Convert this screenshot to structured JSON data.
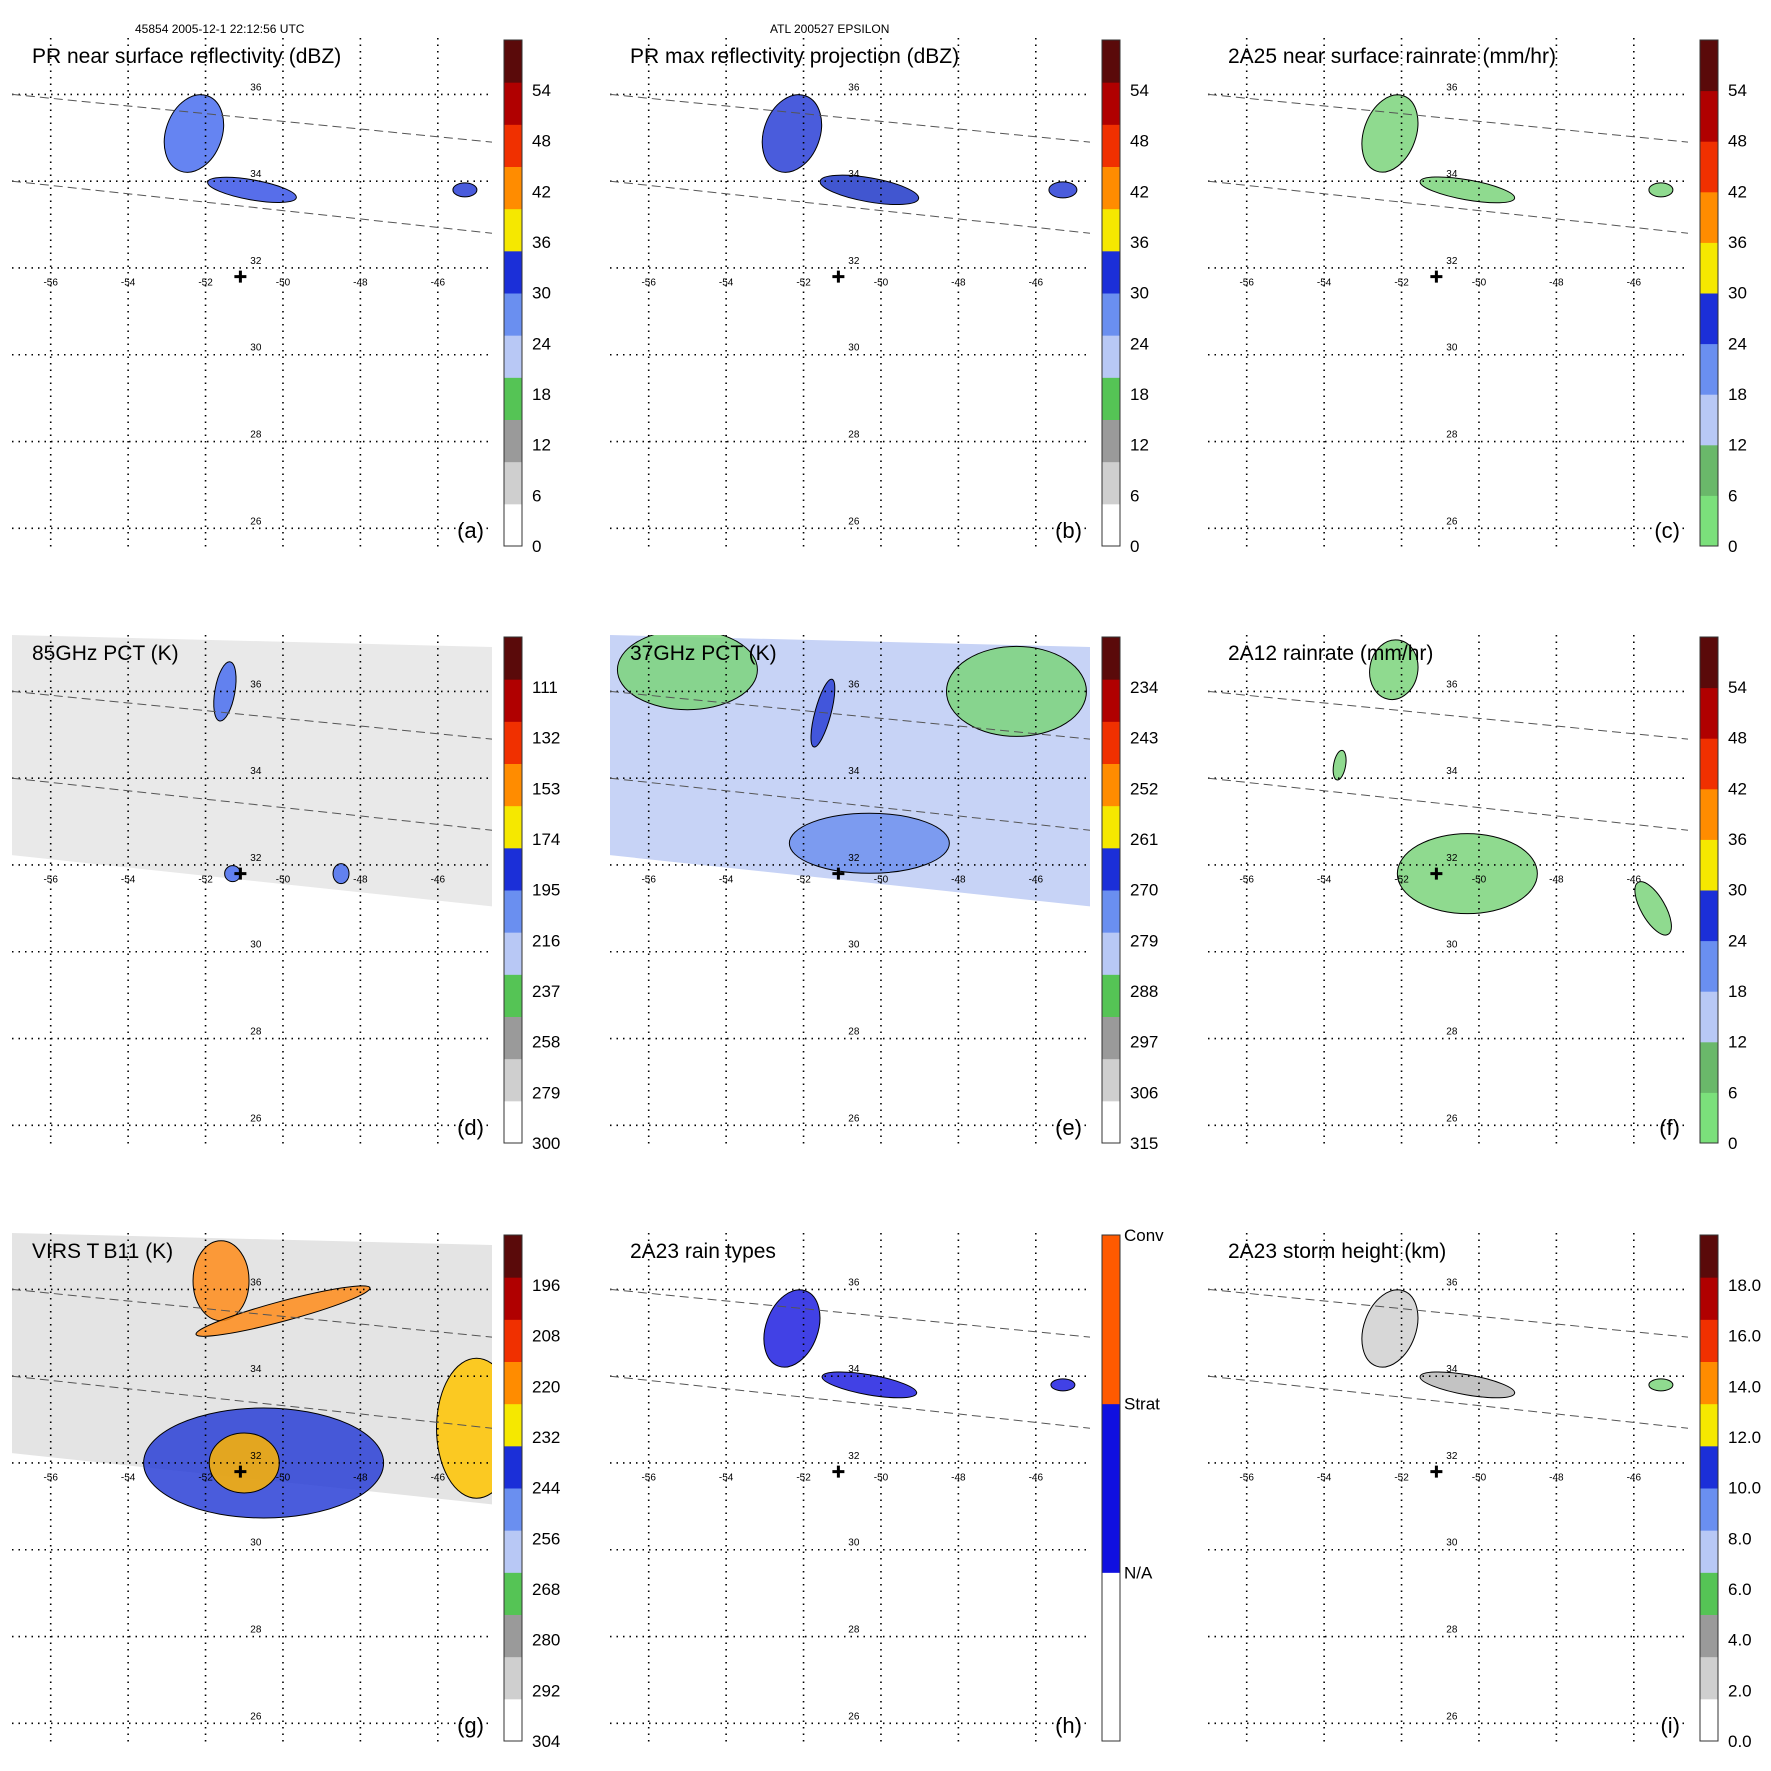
{
  "header": {
    "left": "45854 2005-12-1 22:12:56 UTC",
    "center": "ATL 200527 EPSILON"
  },
  "map": {
    "lon_labels": [
      "-56",
      "-54",
      "-52",
      "-50",
      "-48",
      "-46"
    ],
    "lat_labels": [
      "36",
      "34",
      "32",
      "30",
      "28",
      "26"
    ]
  },
  "panels": [
    {
      "id": "a",
      "title": "PR near surface reflectivity (dBZ)",
      "letter": "(a)",
      "colorbar": {
        "type": "reflectivity",
        "labels": [
          "54",
          "48",
          "42",
          "36",
          "30",
          "24",
          "18",
          "12",
          "6",
          "0"
        ]
      },
      "swath": false,
      "blobs": [
        {
          "lon": -52.3,
          "lat": 35.1,
          "rx": 28,
          "ry": 40,
          "rot": 20,
          "color": "#4a6ff0"
        },
        {
          "lon": -50.8,
          "lat": 33.8,
          "rx": 45,
          "ry": 10,
          "rot": 10,
          "color": "#3a55e6"
        },
        {
          "lon": -45.3,
          "lat": 33.8,
          "rx": 12,
          "ry": 7,
          "rot": 0,
          "color": "#2a3fd6"
        }
      ]
    },
    {
      "id": "b",
      "title": "PR max reflectivity projection (dBZ)",
      "letter": "(b)",
      "colorbar": {
        "type": "reflectivity",
        "labels": [
          "54",
          "48",
          "42",
          "36",
          "30",
          "24",
          "18",
          "12",
          "6",
          "0"
        ]
      },
      "swath": false,
      "blobs": [
        {
          "lon": -52.3,
          "lat": 35.1,
          "rx": 28,
          "ry": 40,
          "rot": 20,
          "color": "#2a3fd6"
        },
        {
          "lon": -50.3,
          "lat": 33.8,
          "rx": 50,
          "ry": 12,
          "rot": 10,
          "color": "#2038c8"
        },
        {
          "lon": -45.3,
          "lat": 33.8,
          "rx": 14,
          "ry": 8,
          "rot": 0,
          "color": "#2a3fd6"
        }
      ]
    },
    {
      "id": "c",
      "title": "2A25 near surface rainrate (mm/hr)",
      "letter": "(c)",
      "colorbar": {
        "type": "rain",
        "labels": [
          "54",
          "48",
          "42",
          "36",
          "30",
          "24",
          "18",
          "12",
          "6",
          "0"
        ]
      },
      "swath": false,
      "blobs": [
        {
          "lon": -52.3,
          "lat": 35.1,
          "rx": 26,
          "ry": 40,
          "rot": 20,
          "color": "#7bd37b"
        },
        {
          "lon": -50.3,
          "lat": 33.8,
          "rx": 48,
          "ry": 10,
          "rot": 10,
          "color": "#7bd37b"
        },
        {
          "lon": -45.3,
          "lat": 33.8,
          "rx": 12,
          "ry": 7,
          "rot": 0,
          "color": "#7bd37b"
        }
      ]
    },
    {
      "id": "d",
      "title": "85GHz PCT (K)",
      "letter": "(d)",
      "colorbar": {
        "type": "pct",
        "labels": [
          "111",
          "132",
          "153",
          "174",
          "195",
          "216",
          "237",
          "258",
          "279",
          "300"
        ]
      },
      "swath": true,
      "swath_fill": "#e9e9e9",
      "blobs": [
        {
          "lon": -51.5,
          "lat": 36.0,
          "rx": 10,
          "ry": 30,
          "rot": 10,
          "color": "#4a6ff0"
        },
        {
          "lon": -48.5,
          "lat": 31.8,
          "rx": 8,
          "ry": 10,
          "rot": 0,
          "color": "#4a6ff0"
        },
        {
          "lon": -51.3,
          "lat": 31.8,
          "rx": 8,
          "ry": 8,
          "rot": 0,
          "color": "#4a6ff0"
        }
      ]
    },
    {
      "id": "e",
      "title": "37GHz PCT (K)",
      "letter": "(e)",
      "colorbar": {
        "type": "pct",
        "labels": [
          "234",
          "243",
          "252",
          "261",
          "270",
          "279",
          "288",
          "297",
          "306",
          "315"
        ]
      },
      "swath": true,
      "swath_fill": "#c7d3f6",
      "blobs": [
        {
          "lon": -55.0,
          "lat": 36.5,
          "rx": 70,
          "ry": 40,
          "rot": 0,
          "color": "#7bd37b"
        },
        {
          "lon": -46.5,
          "lat": 36.0,
          "rx": 70,
          "ry": 45,
          "rot": 0,
          "color": "#7bd37b"
        },
        {
          "lon": -50.3,
          "lat": 32.5,
          "rx": 80,
          "ry": 30,
          "rot": 0,
          "color": "#6f90ef"
        },
        {
          "lon": -51.5,
          "lat": 35.5,
          "rx": 8,
          "ry": 35,
          "rot": 15,
          "color": "#2a3fd6"
        }
      ]
    },
    {
      "id": "f",
      "title": "2A12 rainrate (mm/hr)",
      "letter": "(f)",
      "colorbar": {
        "type": "rain",
        "labels": [
          "54",
          "48",
          "42",
          "36",
          "30",
          "24",
          "18",
          "12",
          "6",
          "0"
        ]
      },
      "swath": false,
      "blobs": [
        {
          "lon": -52.2,
          "lat": 36.5,
          "rx": 24,
          "ry": 30,
          "rot": 10,
          "color": "#7bd37b"
        },
        {
          "lon": -50.3,
          "lat": 31.8,
          "rx": 70,
          "ry": 40,
          "rot": 0,
          "color": "#7bd37b"
        },
        {
          "lon": -45.5,
          "lat": 31.0,
          "rx": 12,
          "ry": 30,
          "rot": -30,
          "color": "#7bd37b"
        },
        {
          "lon": -53.6,
          "lat": 34.3,
          "rx": 6,
          "ry": 15,
          "rot": 10,
          "color": "#7bd37b"
        }
      ]
    },
    {
      "id": "g",
      "title": "VIRS T B11 (K)",
      "letter": "(g)",
      "colorbar": {
        "type": "virs",
        "labels": [
          "196",
          "208",
          "220",
          "232",
          "244",
          "256",
          "268",
          "280",
          "292",
          "304"
        ]
      },
      "swath": true,
      "swath_fill": "#e4e4e4",
      "blobs": [
        {
          "lon": -51.6,
          "lat": 36.2,
          "rx": 28,
          "ry": 40,
          "rot": 0,
          "color": "#ff8c1a"
        },
        {
          "lon": -50.0,
          "lat": 35.5,
          "rx": 90,
          "ry": 10,
          "rot": -15,
          "color": "#ff8c1a"
        },
        {
          "lon": -50.5,
          "lat": 32.0,
          "rx": 120,
          "ry": 55,
          "rot": 0,
          "color": "#2a3fd6"
        },
        {
          "lon": -51.0,
          "lat": 32.0,
          "rx": 35,
          "ry": 30,
          "rot": 0,
          "color": "#ffb400"
        },
        {
          "lon": -45.0,
          "lat": 32.8,
          "rx": 40,
          "ry": 70,
          "rot": 0,
          "color": "#ffc400"
        }
      ]
    },
    {
      "id": "h",
      "title": "2A23 rain types",
      "letter": "(h)",
      "colorbar": {
        "type": "raintype",
        "labels": [
          "Conv",
          "Strat",
          "N/A"
        ]
      },
      "swath": false,
      "blobs": [
        {
          "lon": -52.3,
          "lat": 35.1,
          "rx": 26,
          "ry": 40,
          "rot": 20,
          "color": "#2020e0"
        },
        {
          "lon": -50.3,
          "lat": 33.8,
          "rx": 48,
          "ry": 10,
          "rot": 10,
          "color": "#2020e0"
        },
        {
          "lon": -45.3,
          "lat": 33.8,
          "rx": 12,
          "ry": 6,
          "rot": 0,
          "color": "#2020e0"
        }
      ]
    },
    {
      "id": "i",
      "title": "2A23 storm height (km)",
      "letter": "(i)",
      "colorbar": {
        "type": "height",
        "labels": [
          "18.0",
          "16.0",
          "14.0",
          "12.0",
          "10.0",
          "8.0",
          "6.0",
          "4.0",
          "2.0",
          "0.0"
        ]
      },
      "swath": false,
      "blobs": [
        {
          "lon": -52.3,
          "lat": 35.1,
          "rx": 26,
          "ry": 40,
          "rot": 20,
          "color": "#d0d0d0"
        },
        {
          "lon": -50.3,
          "lat": 33.8,
          "rx": 48,
          "ry": 10,
          "rot": 10,
          "color": "#b8b8b8"
        },
        {
          "lon": -45.3,
          "lat": 33.8,
          "rx": 12,
          "ry": 6,
          "rot": 0,
          "color": "#7bd37b"
        }
      ]
    }
  ]
}
